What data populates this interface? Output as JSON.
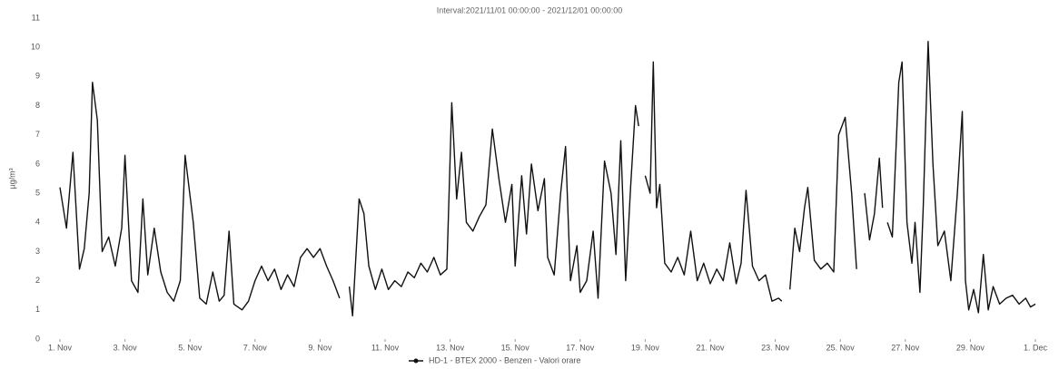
{
  "chart_data": {
    "type": "line",
    "title": "Interval:2021/11/01 00:00:00 - 2021/12/01 00:00:00",
    "y_label": "µg/m³",
    "series": [
      {
        "name": "HD-1 - BTEX 2000 - Benzen - Valori orare",
        "color": "#111111",
        "x": [
          0,
          0.2,
          0.4,
          0.6,
          0.75,
          0.9,
          1.0,
          1.15,
          1.3,
          1.5,
          1.7,
          1.9,
          2.0,
          2.2,
          2.4,
          2.55,
          2.7,
          2.9,
          3.1,
          3.3,
          3.5,
          3.7,
          3.85,
          4.1,
          4.3,
          4.5,
          4.7,
          4.9,
          5.05,
          5.2,
          5.35,
          5.6,
          5.8,
          6.0,
          6.2,
          6.4,
          6.6,
          6.8,
          7.0,
          7.2,
          7.4,
          7.6,
          7.8,
          8.0,
          8.2,
          8.4,
          8.6,
          8.8,
          8.9,
          9.0,
          9.2,
          9.35,
          9.5,
          9.7,
          9.9,
          10.1,
          10.3,
          10.5,
          10.7,
          10.9,
          11.1,
          11.3,
          11.5,
          11.7,
          11.9,
          12.05,
          12.2,
          12.35,
          12.5,
          12.7,
          12.9,
          13.1,
          13.3,
          13.5,
          13.7,
          13.9,
          14.0,
          14.2,
          14.35,
          14.5,
          14.7,
          14.9,
          15.0,
          15.2,
          15.4,
          15.55,
          15.7,
          15.9,
          16.0,
          16.2,
          16.4,
          16.55,
          16.75,
          16.95,
          17.1,
          17.25,
          17.4,
          17.55,
          17.7,
          17.8,
          17.9,
          18.0,
          18.15,
          18.25,
          18.35,
          18.45,
          18.6,
          18.8,
          19.0,
          19.2,
          19.4,
          19.6,
          19.8,
          20.0,
          20.2,
          20.4,
          20.6,
          20.8,
          20.95,
          21.1,
          21.3,
          21.5,
          21.7,
          21.9,
          22.1,
          22.2,
          22.35,
          22.45,
          22.6,
          22.75,
          22.9,
          23.0,
          23.2,
          23.4,
          23.6,
          23.8,
          23.95,
          24.15,
          24.35,
          24.5,
          24.6,
          24.75,
          24.9,
          25.05,
          25.2,
          25.3,
          25.35,
          25.45,
          25.6,
          25.8,
          25.9,
          26.05,
          26.2,
          26.3,
          26.45,
          26.55,
          26.7,
          26.85,
          27.0,
          27.2,
          27.4,
          27.6,
          27.75,
          27.85,
          27.95,
          28.1,
          28.25,
          28.4,
          28.55,
          28.7,
          28.9,
          29.1,
          29.3,
          29.5,
          29.7,
          29.85,
          30.0
        ],
        "values": [
          5.2,
          3.8,
          6.4,
          2.4,
          3.1,
          5.0,
          8.8,
          7.5,
          3.0,
          3.5,
          2.5,
          3.8,
          6.3,
          2.0,
          1.6,
          4.8,
          2.2,
          3.8,
          2.3,
          1.6,
          1.3,
          2.0,
          6.3,
          4.0,
          1.4,
          1.2,
          2.3,
          1.3,
          1.5,
          3.7,
          1.2,
          1.0,
          1.3,
          2.0,
          2.5,
          2.0,
          2.4,
          1.7,
          2.2,
          1.8,
          2.8,
          3.1,
          2.8,
          3.1,
          2.5,
          2.0,
          1.4,
          null,
          1.8,
          0.8,
          4.8,
          4.3,
          2.5,
          1.7,
          2.4,
          1.7,
          2.0,
          1.8,
          2.3,
          2.1,
          2.6,
          2.3,
          2.8,
          2.2,
          2.4,
          8.1,
          4.8,
          6.4,
          4.0,
          3.7,
          4.2,
          4.6,
          7.2,
          5.5,
          4.0,
          5.3,
          2.5,
          5.6,
          3.6,
          6.0,
          4.4,
          5.5,
          2.8,
          2.2,
          5.0,
          6.6,
          2.0,
          3.2,
          1.6,
          2.0,
          3.7,
          1.4,
          6.1,
          5.0,
          2.9,
          6.8,
          2.0,
          5.2,
          8.0,
          7.3,
          null,
          5.6,
          5.0,
          9.5,
          4.5,
          5.3,
          2.6,
          2.3,
          2.8,
          2.2,
          3.7,
          2.0,
          2.6,
          1.9,
          2.4,
          2.0,
          3.3,
          1.9,
          2.6,
          5.1,
          2.5,
          2.0,
          2.2,
          1.3,
          1.4,
          1.3,
          null,
          1.7,
          3.8,
          3.0,
          4.5,
          5.2,
          2.7,
          2.4,
          2.6,
          2.3,
          7.0,
          7.6,
          5.0,
          2.4,
          null,
          5.0,
          3.4,
          4.3,
          6.2,
          4.5,
          null,
          4.0,
          3.5,
          8.8,
          9.5,
          4.0,
          2.6,
          4.0,
          1.6,
          4.5,
          10.2,
          6.0,
          3.2,
          3.7,
          2.0,
          5.0,
          7.8,
          2.0,
          1.0,
          1.7,
          0.9,
          2.9,
          1.0,
          1.8,
          1.2,
          1.4,
          1.5,
          1.2,
          1.4,
          1.1,
          1.2
        ]
      }
    ],
    "xlim": [
      0,
      30
    ],
    "xticks": [
      {
        "value": 0,
        "label": "1. Nov"
      },
      {
        "value": 2,
        "label": "3. Nov"
      },
      {
        "value": 4,
        "label": "5. Nov"
      },
      {
        "value": 6,
        "label": "7. Nov"
      },
      {
        "value": 8,
        "label": "9. Nov"
      },
      {
        "value": 10,
        "label": "11. Nov"
      },
      {
        "value": 12,
        "label": "13. Nov"
      },
      {
        "value": 14,
        "label": "15. Nov"
      },
      {
        "value": 16,
        "label": "17. Nov"
      },
      {
        "value": 18,
        "label": "19. Nov"
      },
      {
        "value": 20,
        "label": "21. Nov"
      },
      {
        "value": 22,
        "label": "23. Nov"
      },
      {
        "value": 24,
        "label": "25. Nov"
      },
      {
        "value": 26,
        "label": "27. Nov"
      },
      {
        "value": 28,
        "label": "29. Nov"
      },
      {
        "value": 30,
        "label": "1. Dec"
      }
    ],
    "ylim": [
      0,
      11
    ],
    "yticks": [
      0,
      1,
      2,
      3,
      4,
      5,
      6,
      7,
      8,
      9,
      10,
      11
    ],
    "grid": false,
    "legend": "bottom"
  }
}
